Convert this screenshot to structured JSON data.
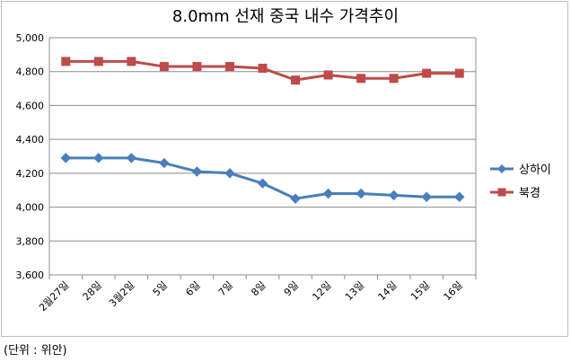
{
  "chart_data": {
    "type": "line",
    "title": "8.0mm 선재 중국 내수 가격추이",
    "note": "(단위 : 위안)",
    "categories": [
      "2월27일",
      "28일",
      "3월2일",
      "5일",
      "6일",
      "7일",
      "8일",
      "9일",
      "12일",
      "13일",
      "14일",
      "15일",
      "16일"
    ],
    "series": [
      {
        "name": "상하이",
        "color": "#4a7ebb",
        "marker": "diamond",
        "values": [
          4290,
          4290,
          4290,
          4260,
          4210,
          4200,
          4140,
          4050,
          4080,
          4080,
          4070,
          4060,
          4060
        ]
      },
      {
        "name": "북경",
        "color": "#be4b48",
        "marker": "square",
        "values": [
          4860,
          4860,
          4860,
          4830,
          4830,
          4830,
          4820,
          4750,
          4780,
          4760,
          4760,
          4790,
          4790
        ]
      }
    ],
    "ylim": [
      3600,
      5000
    ],
    "yticks": [
      "3,600",
      "3,800",
      "4,000",
      "4,200",
      "4,400",
      "4,600",
      "4,800",
      "5,000"
    ],
    "ytick_values": [
      3600,
      3800,
      4000,
      4200,
      4400,
      4600,
      4800,
      5000
    ],
    "grid": true,
    "legend": "right"
  }
}
